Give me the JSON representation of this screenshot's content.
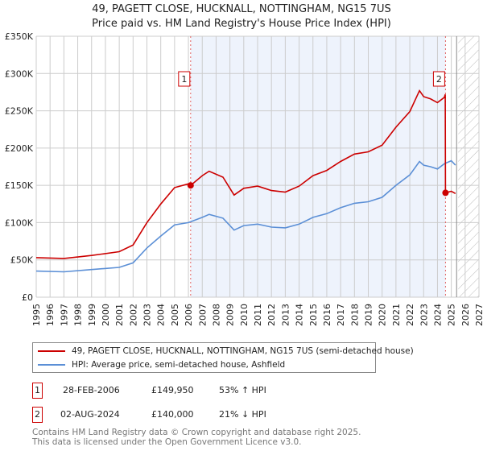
{
  "title": "49, PAGETT CLOSE, HUCKNALL, NOTTINGHAM, NG15 7US",
  "subtitle": "Price paid vs. HM Land Registry's House Price Index (HPI)",
  "colors": {
    "property": "#cc0000",
    "hpi": "#5b8fd6",
    "shade": "#eef3fc"
  },
  "chart_data": {
    "type": "line",
    "title": "49, PAGETT CLOSE, HUCKNALL, NOTTINGHAM, NG15 7US",
    "xlim": [
      1995,
      2027
    ],
    "ylim": [
      0,
      350000
    ],
    "x_ticks": [
      "1995",
      "1996",
      "1997",
      "1998",
      "1999",
      "2000",
      "2001",
      "2002",
      "2003",
      "2004",
      "2005",
      "2006",
      "2007",
      "2008",
      "2009",
      "2010",
      "2011",
      "2012",
      "2013",
      "2014",
      "2015",
      "2016",
      "2017",
      "2018",
      "2019",
      "2020",
      "2021",
      "2022",
      "2023",
      "2024",
      "2025",
      "2026",
      "2027"
    ],
    "y_ticks": [
      {
        "v": 0,
        "label": "£0"
      },
      {
        "v": 50000,
        "label": "£50K"
      },
      {
        "v": 100000,
        "label": "£100K"
      },
      {
        "v": 150000,
        "label": "£150K"
      },
      {
        "v": 200000,
        "label": "£200K"
      },
      {
        "v": 250000,
        "label": "£250K"
      },
      {
        "v": 300000,
        "label": "£300K"
      },
      {
        "v": 350000,
        "label": "£350K"
      }
    ],
    "grid": true,
    "series": [
      {
        "name": "49, PAGETT CLOSE, HUCKNALL, NOTTINGHAM, NG15 7US (semi-detached house)",
        "color": "#cc0000",
        "x": [
          1995,
          1997,
          1999,
          2001,
          2002,
          2003,
          2004,
          2005,
          2006,
          2006.16,
          2007,
          2007.5,
          2008.5,
          2009.3,
          2010,
          2011,
          2011.5,
          2012,
          2013,
          2014,
          2015,
          2016,
          2017,
          2018,
          2019,
          2020,
          2021,
          2022,
          2022.7,
          2023,
          2023.5,
          2024,
          2024.5,
          2024.56,
          2024.58,
          2025,
          2025.3
        ],
        "y": [
          53000,
          52000,
          56000,
          61000,
          70000,
          100000,
          125000,
          147000,
          152000,
          149950,
          163000,
          169000,
          161000,
          137000,
          146000,
          149000,
          146000,
          143000,
          141000,
          149000,
          163000,
          170000,
          182000,
          192000,
          195000,
          204000,
          228000,
          249000,
          277000,
          269000,
          266000,
          261000,
          268000,
          272000,
          140000,
          142000,
          139000
        ]
      },
      {
        "name": "HPI: Average price, semi-detached house, Ashfield",
        "color": "#5b8fd6",
        "x": [
          1995,
          1997,
          1999,
          2001,
          2002,
          2003,
          2004,
          2005,
          2006,
          2007,
          2007.5,
          2008.5,
          2009.3,
          2010,
          2011,
          2011.5,
          2012,
          2013,
          2014,
          2015,
          2016,
          2017,
          2018,
          2019,
          2020,
          2021,
          2022,
          2022.7,
          2023,
          2023.5,
          2024,
          2024.5,
          2025,
          2025.3
        ],
        "y": [
          35000,
          34000,
          37000,
          40000,
          46000,
          66000,
          82000,
          97000,
          100000,
          107000,
          111000,
          106000,
          90000,
          96000,
          98000,
          96000,
          94000,
          93000,
          98000,
          107000,
          112000,
          120000,
          126000,
          128000,
          134000,
          150000,
          164000,
          182000,
          177000,
          175000,
          172000,
          179000,
          183000,
          177000
        ]
      }
    ],
    "sales": [
      {
        "id": "1",
        "x": 2006.16,
        "y": 149950
      },
      {
        "id": "2",
        "x": 2024.58,
        "y": 140000
      }
    ],
    "forecast_hatch_from": 2025.5,
    "legend_position": "below"
  },
  "legend": {
    "property": "49, PAGETT CLOSE, HUCKNALL, NOTTINGHAM, NG15 7US (semi-detached house)",
    "hpi": "HPI: Average price, semi-detached house, Ashfield"
  },
  "sales_table": [
    {
      "id": "1",
      "date": "28-FEB-2006",
      "price": "£149,950",
      "hpi": "53% ↑ HPI"
    },
    {
      "id": "2",
      "date": "02-AUG-2024",
      "price": "£140,000",
      "hpi": "21% ↓ HPI"
    }
  ],
  "footer": [
    "Contains HM Land Registry data © Crown copyright and database right 2025.",
    "This data is licensed under the Open Government Licence v3.0."
  ]
}
